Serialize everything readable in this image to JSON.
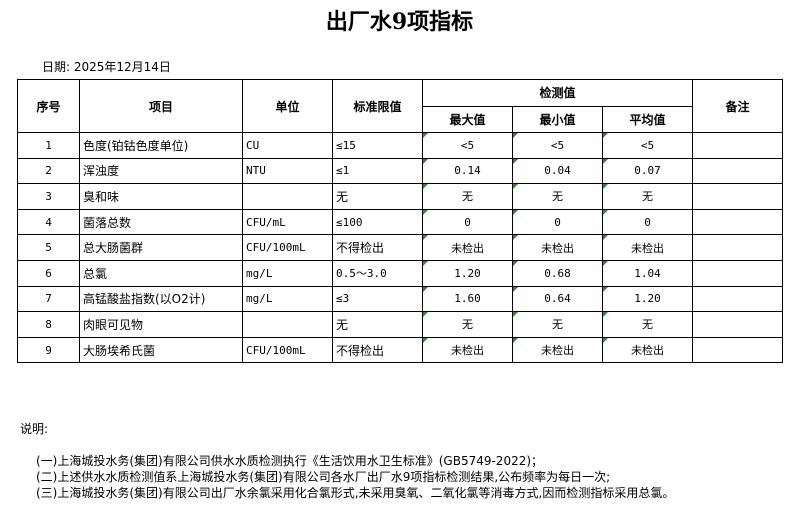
{
  "title": "出厂水9项指标",
  "date": "日期: 2025年12月14日",
  "headers": {
    "no": "序号",
    "item": "项目",
    "unit": "单位",
    "limit": "标准限值",
    "measured": "检测值",
    "max": "最大值",
    "min": "最小值",
    "avg": "平均值",
    "remark": "备注"
  },
  "rows": [
    {
      "no": "1",
      "item": "色度(铂钴色度单位)",
      "unit": "CU",
      "limit": "≤15",
      "max": "<5",
      "min": "<5",
      "avg": "<5"
    },
    {
      "no": "2",
      "item": "浑浊度",
      "unit": "NTU",
      "limit": "≤1",
      "max": "0.14",
      "min": "0.04",
      "avg": "0.07"
    },
    {
      "no": "3",
      "item": "臭和味",
      "unit": "",
      "limit": "无",
      "max": "无",
      "min": "无",
      "avg": "无"
    },
    {
      "no": "4",
      "item": "菌落总数",
      "unit": "CFU/mL",
      "limit": "≤100",
      "max": "0",
      "min": "0",
      "avg": "0"
    },
    {
      "no": "5",
      "item": "总大肠菌群",
      "unit": "CFU/100mL",
      "limit": "不得检出",
      "max": "未检出",
      "min": "未检出",
      "avg": "未检出"
    },
    {
      "no": "6",
      "item": "总氯",
      "unit": "mg/L",
      "limit": "0.5～3.0",
      "max": "1.20",
      "min": "0.68",
      "avg": "1.04"
    },
    {
      "no": "7",
      "item": "高锰酸盐指数(以O2计)",
      "unit": "mg/L",
      "limit": "≤3",
      "max": "1.60",
      "min": "0.64",
      "avg": "1.20"
    },
    {
      "no": "8",
      "item": "肉眼可见物",
      "unit": "",
      "limit": "无",
      "max": "无",
      "min": "无",
      "avg": "无"
    },
    {
      "no": "9",
      "item": "大肠埃希氏菌",
      "unit": "CFU/100mL",
      "limit": "不得检出",
      "max": "未检出",
      "min": "未检出",
      "avg": "未检出"
    }
  ],
  "notes_label": "说明:",
  "notes": [
    "(一)上海城投水务(集团)有限公司供水水质检测执行《生活饮用水卫生标准》(GB5749-2022)；",
    "(二)上述供水水质检测值系上海城投水务(集团)有限公司各水厂出厂水9项指标检测结果,公布频率为每日一次;",
    "(三)上海城投水务(集团)有限公司出厂水余氯采用化合氯形式,未采用臭氧、二氧化氯等消毒方式,因而检测指标采用总氯。"
  ]
}
